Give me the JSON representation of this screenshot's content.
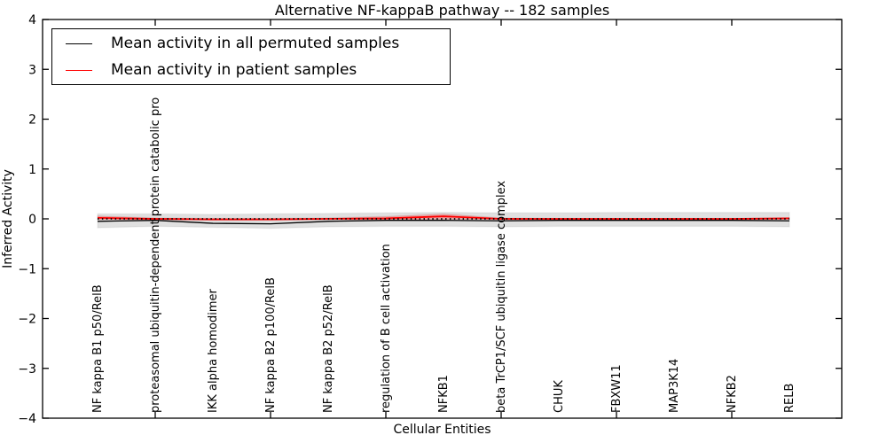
{
  "chart_data": {
    "type": "line",
    "title": "Alternative NF-kappaB pathway -- 182 samples",
    "xlabel": "Cellular Entities",
    "ylabel": "Inferred Activity",
    "ylim": [
      -4,
      4
    ],
    "yticks": [
      4,
      3,
      2,
      1,
      0,
      -1,
      -2,
      -3,
      -4
    ],
    "ytick_labels": [
      "4",
      "3",
      "2",
      "1",
      "0",
      "−1",
      "−2",
      "−3",
      "−4"
    ],
    "grid": false,
    "legend_position": "upper left",
    "categories": [
      "NF kappa B1 p50/RelB",
      "proteasomal ubiquitin-dependent protein catabolic pro",
      "IKK alpha homodimer",
      "NF kappa B2 p100/RelB",
      "NF kappa B2 p52/RelB",
      "regulation of B cell activation",
      "NFKB1",
      "beta TrCP1/SCF ubiquitin ligase complex",
      "CHUK",
      "FBXW11",
      "MAP3K14",
      "NFKB2",
      "RELB"
    ],
    "series": [
      {
        "name": "Mean activity in all permuted samples",
        "color": "#000000",
        "band_color": "rgba(0,0,0,0.12)",
        "values": [
          -0.05,
          -0.03,
          -0.09,
          -0.1,
          -0.05,
          -0.03,
          -0.03,
          -0.04,
          -0.03,
          -0.03,
          -0.03,
          -0.03,
          -0.04
        ],
        "band_upper": [
          0.1,
          0.1,
          0.09,
          0.1,
          0.11,
          0.12,
          0.13,
          0.12,
          0.12,
          0.13,
          0.13,
          0.13,
          0.13
        ],
        "band_lower": [
          -0.18,
          -0.15,
          -0.17,
          -0.19,
          -0.16,
          -0.15,
          -0.15,
          -0.16,
          -0.15,
          -0.15,
          -0.15,
          -0.15,
          -0.16
        ]
      },
      {
        "name": "Mean activity in patient samples",
        "color": "#ff0000",
        "band_color": "rgba(255,0,0,0.25)",
        "values": [
          0.02,
          0.0,
          -0.01,
          -0.01,
          0.0,
          0.01,
          0.05,
          0.0,
          0.0,
          0.0,
          0.0,
          0.0,
          0.01
        ],
        "band_upper": [
          0.06,
          0.02,
          0.01,
          0.01,
          0.02,
          0.05,
          0.1,
          0.02,
          0.01,
          0.01,
          0.01,
          0.01,
          0.02
        ],
        "band_lower": [
          -0.02,
          -0.02,
          -0.03,
          -0.03,
          -0.02,
          -0.02,
          -0.01,
          -0.02,
          -0.02,
          -0.02,
          -0.02,
          -0.02,
          -0.01
        ]
      }
    ],
    "zero_line": {
      "value": 0,
      "color": "#000000",
      "style": "dotted"
    }
  }
}
